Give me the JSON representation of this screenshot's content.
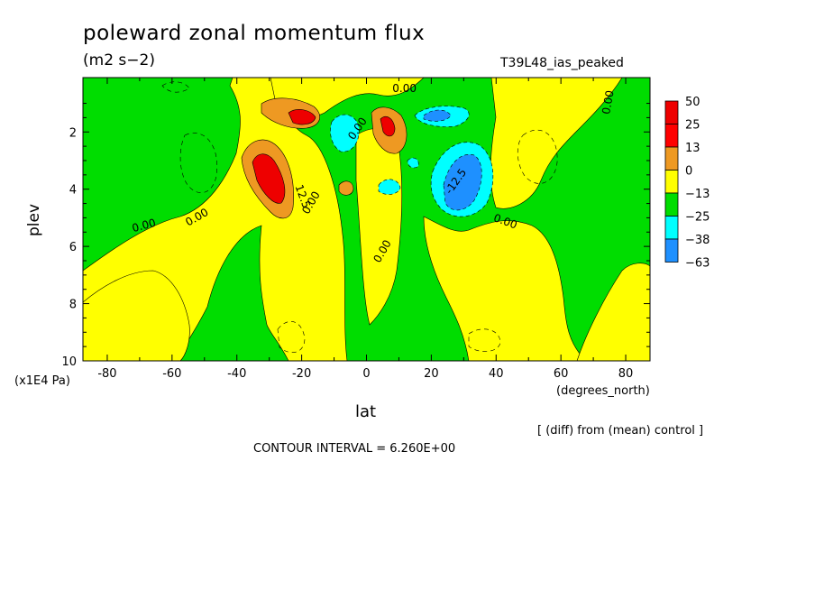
{
  "title": "poleward zonal momentum flux",
  "units": "(m2 s−2)",
  "run_label": "T39L48_ias_peaked",
  "diff_note": "[ (diff) from (mean) control ]",
  "contour_interval": "CONTOUR INTERVAL = 6.260E+00",
  "chart_data": {
    "type": "heatmap",
    "title": "poleward zonal momentum flux",
    "xlabel": "lat",
    "x_units": "(degrees_north)",
    "ylabel": "plev",
    "y_units": "(x1E4 Pa)",
    "xlim": [
      -87.5,
      87.5
    ],
    "ylim": [
      10,
      0.1
    ],
    "x_ticks": [
      "-80",
      "-60",
      "-40",
      "-20",
      "0",
      "20",
      "40",
      "60",
      "80"
    ],
    "y_ticks": [
      "2",
      "4",
      "6",
      "8",
      "10"
    ],
    "legend": {
      "levels": [
        "50",
        "25",
        "13",
        "0",
        "−13",
        "−25",
        "−38",
        "−63"
      ],
      "colors": [
        "#ee0000",
        "#ff0000",
        "#ee9922",
        "#ffff00",
        "#00dd00",
        "#00ffff",
        "#1e90ff",
        "#0050ff"
      ]
    },
    "contour_labels": [
      "0.00",
      "0.00",
      "0.00",
      "0.00",
      "0.00",
      "0.00",
      "0.00",
      "0.00",
      "12.5",
      "-12.5"
    ],
    "features": [
      {
        "lat": -30,
        "plev": 3.5,
        "value": 40,
        "color": "#ee0000"
      },
      {
        "lat": -20,
        "plev": 1.5,
        "value": 35,
        "color": "#ee0000"
      },
      {
        "lat": 6,
        "plev": 1.9,
        "value": 30,
        "color": "#ee0000"
      },
      {
        "lat": 29,
        "plev": 3.7,
        "value": -35,
        "color": "#1e90ff"
      },
      {
        "lat": 21,
        "plev": 1.5,
        "value": -30,
        "color": "#1e90ff"
      },
      {
        "lat": -7,
        "plev": 1.8,
        "value": -18,
        "color": "#00ffff"
      },
      {
        "lat": 7,
        "plev": 4.0,
        "value": -15,
        "color": "#00ffff"
      }
    ]
  }
}
